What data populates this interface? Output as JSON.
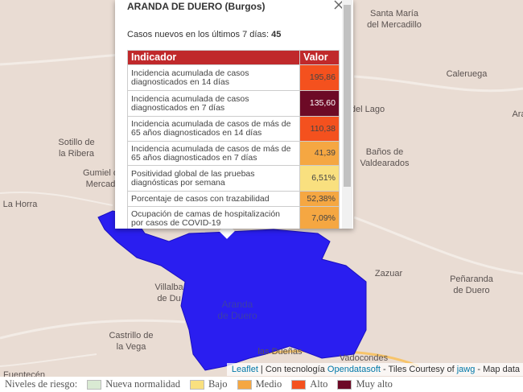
{
  "map": {
    "places": [
      [
        "Santa María",
        "del Mercadillo"
      ],
      [
        "Caleruega"
      ],
      [
        "del Lago"
      ],
      [
        "Ara"
      ],
      [
        "Baños de",
        "Valdearados"
      ],
      [
        "Sotillo de",
        "la Ribera"
      ],
      [
        "Gumiel d",
        "Mercad"
      ],
      [
        "La Horra"
      ],
      [
        "Zazuar"
      ],
      [
        "Peñaranda",
        "de Duero"
      ],
      [
        "Villalba",
        "de Du"
      ],
      [
        "Aranda",
        "de Duero"
      ],
      [
        "Castrillo de",
        "la Vega"
      ],
      [
        "las Dueñas"
      ],
      [
        "Vadocondes"
      ],
      [
        "Fuentecén"
      ]
    ],
    "region_color": "#2a1ef0",
    "attribution": [
      {
        "text": "Leaflet",
        "link": true
      },
      {
        "text": " | Con tecnología ",
        "link": false
      },
      {
        "text": "Opendatasoft",
        "link": true
      },
      {
        "text": " - Tiles Courtesy of ",
        "link": false
      },
      {
        "text": "jawg",
        "link": true
      },
      {
        "text": " - Map data",
        "link": false
      }
    ]
  },
  "popup": {
    "title": "ARANDA DE DUERO (Burgos)",
    "cases_label": "Casos nuevos en los últimos 7 días:",
    "cases_value": "45",
    "table": {
      "headers": [
        "Indicador",
        "Valor"
      ],
      "header_color": "#c0292b",
      "rows": [
        {
          "indicator": [
            "Incidencia acumulada de casos",
            "diagnosticados en 14 días"
          ],
          "value": "195,86",
          "color": "#f4511e"
        },
        {
          "indicator": [
            "Incidencia acumulada de casos",
            "diagnosticados en 7 días"
          ],
          "value": "135,60",
          "color": "#6d0a26"
        },
        {
          "indicator": [
            "Incidencia acumulada de casos de más de",
            "65 años diagnosticados en 14 días"
          ],
          "value": "110,38",
          "color": "#f4511e"
        },
        {
          "indicator": [
            "Incidencia acumulada de casos de más de",
            "65 años diagnosticados en 7 días"
          ],
          "value": "41,39",
          "color": "#f5a742"
        },
        {
          "indicator": [
            "Positividad global de las pruebas",
            "diagnósticas por semana"
          ],
          "value": "6,51%",
          "color": "#f9e07f"
        },
        {
          "indicator": [
            "Porcentaje de casos con trazabilidad"
          ],
          "value": "52,38%",
          "color": "#f5a742"
        },
        {
          "indicator": [
            "Ocupación de camas de hospitalización",
            "por casos de COVID-19"
          ],
          "value": "7,09%",
          "color": "#f5a742"
        }
      ]
    }
  },
  "legend": {
    "title": "Niveles de riesgo:",
    "items": [
      {
        "label": "Nueva normalidad",
        "color": "#d9ead3"
      },
      {
        "label": "Bajo",
        "color": "#f9e07f"
      },
      {
        "label": "Medio",
        "color": "#f5a742"
      },
      {
        "label": "Alto",
        "color": "#f4511e"
      },
      {
        "label": "Muy alto",
        "color": "#6d0a26"
      }
    ]
  }
}
